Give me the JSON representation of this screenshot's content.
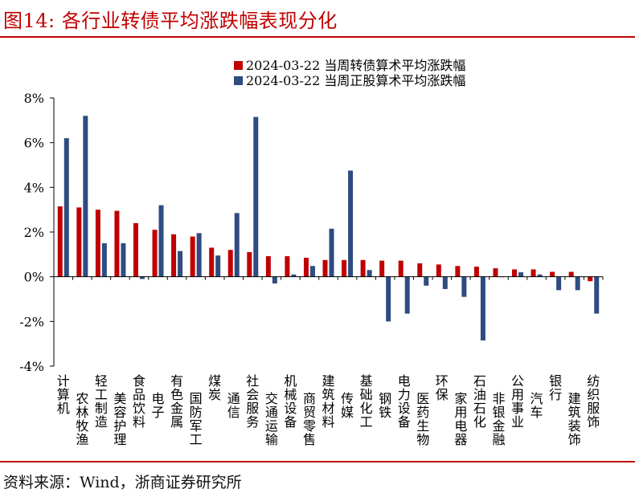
{
  "figure": {
    "title": "图14:  各行业转债平均涨跌幅表现分化",
    "source": "资料来源：Wind，浙商证券研究所"
  },
  "colors": {
    "series1": "#c00000",
    "series2": "#2e4c80",
    "accent": "#c00000"
  },
  "chart_data": {
    "type": "bar",
    "title": "",
    "xlabel": "",
    "ylabel": "",
    "ylim": [
      -4,
      8
    ],
    "yticks": [
      -4,
      -2,
      0,
      2,
      4,
      6,
      8
    ],
    "ytick_labels": [
      "-4%",
      "-2%",
      "0%",
      "2%",
      "4%",
      "6%",
      "8%"
    ],
    "legend_position": "top-right",
    "grid": false,
    "categories": [
      "计算机",
      "农林牧渔",
      "轻工制造",
      "美容护理",
      "食品饮料",
      "电子",
      "有色金属",
      "国防军工",
      "煤炭",
      "通信",
      "社会服务",
      "交通运输",
      "机械设备",
      "商贸零售",
      "建筑材料",
      "传媒",
      "基础化工",
      "钢铁",
      "电力设备",
      "医药生物",
      "环保",
      "家用电器",
      "石油石化",
      "非银金融",
      "公用事业",
      "汽车",
      "银行",
      "建筑装饰",
      "纺织服饰"
    ],
    "series": [
      {
        "name": "2024-03-22 当周转债算术平均涨跌幅",
        "values": [
          3.15,
          3.1,
          3.0,
          2.95,
          2.4,
          2.1,
          1.9,
          1.8,
          1.3,
          1.2,
          1.1,
          0.92,
          0.92,
          0.85,
          0.75,
          0.75,
          0.75,
          0.72,
          0.72,
          0.6,
          0.55,
          0.48,
          0.45,
          0.38,
          0.33,
          0.33,
          0.22,
          0.22,
          -0.2
        ]
      },
      {
        "name": "2024-03-22 当周正股算术平均涨跌幅",
        "values": [
          6.2,
          7.2,
          1.5,
          1.5,
          -0.1,
          3.2,
          1.15,
          1.95,
          0.95,
          2.85,
          7.15,
          -0.3,
          0.1,
          0.48,
          2.15,
          4.75,
          0.3,
          -2.0,
          -1.65,
          -0.4,
          -0.55,
          -0.9,
          -2.85,
          -0.02,
          0.2,
          0.1,
          -0.6,
          -0.6,
          -1.65
        ]
      }
    ]
  }
}
